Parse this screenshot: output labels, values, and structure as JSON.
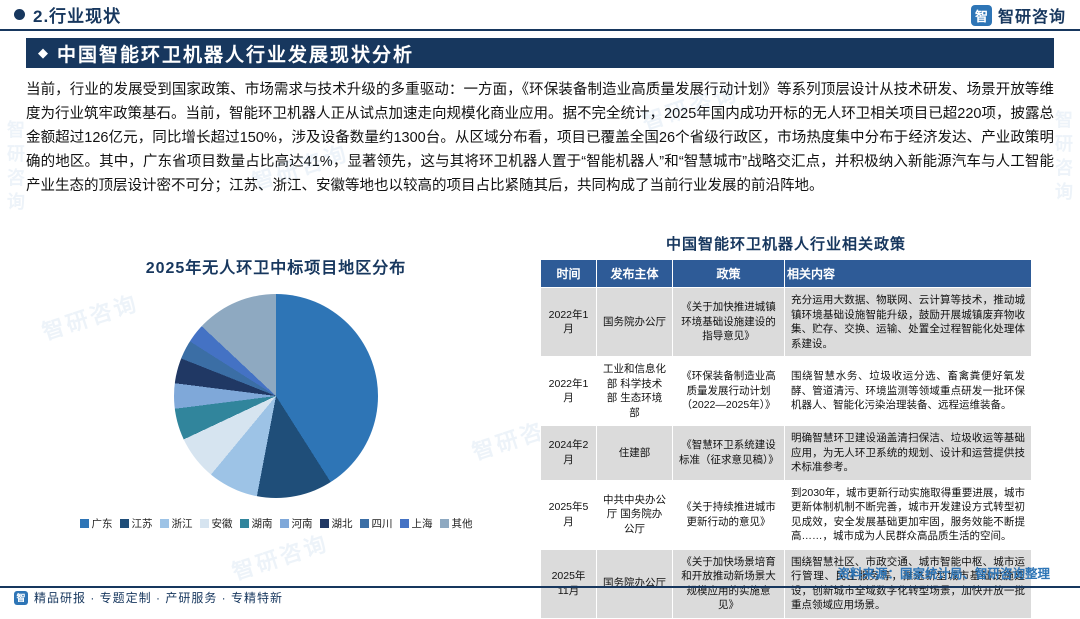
{
  "header": {
    "section": "2.行业现状"
  },
  "brand": {
    "name": "智研咨询",
    "logo_glyph": "智"
  },
  "title_bar": {
    "icon": "◆",
    "title": "中国智能环卫机器人行业发展现状分析"
  },
  "body_paragraph": "当前，行业的发展受到国家政策、市场需求与技术升级的多重驱动：一方面，《环保装备制造业高质量发展行动计划》等系列顶层设计从技术研发、场景开放等维度为行业筑牢政策基石。当前，智能环卫机器人正从试点加速走向规模化商业应用。据不完全统计，2025年国内成功开标的无人环卫相关项目已超220项，披露总金额超过126亿元，同比增长超过150%，涉及设备数量约1300台。从区域分布看，项目已覆盖全国26个省级行政区，市场热度集中分布于经济发达、产业政策明确的地区。其中，广东省项目数量占比高达41%，显著领先，这与其将环卫机器人置于“智能机器人”和“智慧城市”战略交汇点，并积极纳入新能源汽车与人工智能产业生态的顶层设计密不可分；江苏、浙江、安徽等地也以较高的项目占比紧随其后，共同构成了当前行业发展的前沿阵地。",
  "chart_data": {
    "type": "pie",
    "title": "2025年无人环卫中标项目地区分布",
    "categories": [
      "广东",
      "江苏",
      "浙江",
      "安徽",
      "湖南",
      "河南",
      "湖北",
      "四川",
      "上海",
      "其他"
    ],
    "values": [
      41,
      12,
      8,
      7,
      5,
      4,
      4,
      3,
      3,
      13
    ],
    "colors": [
      "#2E75B6",
      "#1F4E79",
      "#9DC3E6",
      "#D6E4F0",
      "#31859C",
      "#7FA8D9",
      "#203864",
      "#3B6EA5",
      "#4472C4",
      "#8EA9C1"
    ],
    "legend_position": "bottom"
  },
  "policy_table": {
    "title": "中国智能环卫机器人行业相关政策",
    "headers": [
      "时间",
      "发布主体",
      "政策",
      "相关内容"
    ],
    "rows": [
      {
        "time": "2022年1月",
        "issuer": "国务院办公厅",
        "policy": "《关于加快推进城镇环境基础设施建设的指导意见》",
        "content": "充分运用大数据、物联网、云计算等技术，推动城镇环境基础设施智能升级，鼓励开展城镇废弃物收集、贮存、交换、运输、处置全过程智能化处理体系建设。"
      },
      {
        "time": "2022年1月",
        "issuer": "工业和信息化部 科学技术部 生态环境部",
        "policy": "《环保装备制造业高质量发展行动计划（2022—2025年）》",
        "content": "围绕智慧水务、垃圾收运分选、畜禽粪便好氧发酵、管道清污、环境监测等领域重点研发一批环保机器人、智能化污染治理装备、远程运维装备。"
      },
      {
        "time": "2024年2月",
        "issuer": "住建部",
        "policy": "《智慧环卫系统建设标准（征求意见稿）》",
        "content": "明确智慧环卫建设涵盖清扫保洁、垃圾收运等基础应用，为无人环卫系统的规划、设计和运营提供技术标准参考。"
      },
      {
        "time": "2025年5月",
        "issuer": "中共中央办公厅 国务院办公厅",
        "policy": "《关于持续推进城市更新行动的意见》",
        "content": "到2030年，城市更新行动实施取得重要进展，城市更新体制机制不断完善，城市开发建设方式转型初见成效，安全发展基础更加牢固，服务效能不断提高……，城市成为人民群众高品质生活的空间。"
      },
      {
        "time": "2025年11月",
        "issuer": "国务院办公厅",
        "policy": "《关于加快场景培育和开放推动新场景大规模应用的实施意见》",
        "content": "围绕智慧社区、市政交通、城市智能中枢、城市运行管理、民生服务等，推进新型城市基础设施建设，创新城市全域数字化转型场景，加快开放一批重点领域应用场景。"
      }
    ]
  },
  "footer": {
    "left": "精品研报 · 专题定制 · 产研服务 · 专精特新",
    "source": "资料来源：国家统计局、智研咨询整理"
  }
}
